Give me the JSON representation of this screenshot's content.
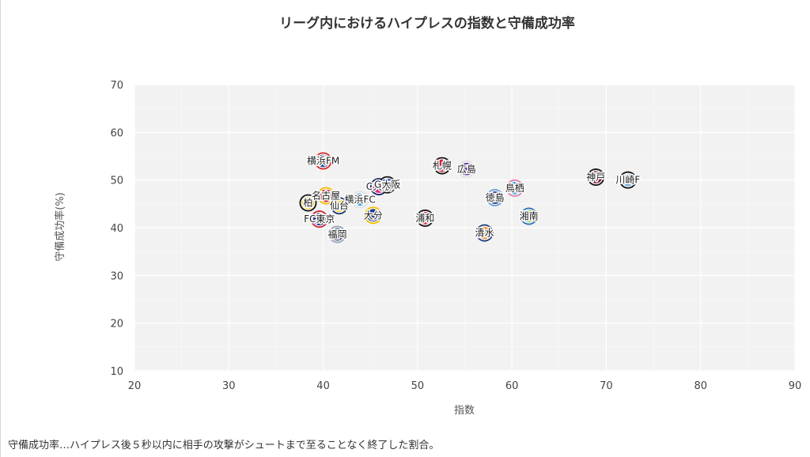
{
  "chart_data": {
    "type": "scatter",
    "title": "リーグ内におけるハイプレスの指数と守備成功率",
    "xlabel": "指数",
    "ylabel": "守備成功率(%)",
    "xlim": [
      20,
      90
    ],
    "ylim": [
      10,
      70
    ],
    "xticks": [
      20,
      30,
      40,
      50,
      60,
      70,
      80,
      90
    ],
    "yticks": [
      10,
      20,
      30,
      40,
      50,
      60,
      70
    ],
    "grid": true,
    "legend": "none",
    "points": [
      {
        "label": "横浜FM",
        "x": 40.0,
        "y": 54.0,
        "color": "#1f4b9c",
        "ring": "#d82b2b"
      },
      {
        "label": "札幌",
        "x": 52.6,
        "y": 53.0,
        "color": "#d4263b",
        "ring": "#1a1a1a"
      },
      {
        "label": "広島",
        "x": 55.2,
        "y": 52.3,
        "color": "#6a3fa8",
        "ring": "#e0e0e0"
      },
      {
        "label": "神戸",
        "x": 68.9,
        "y": 50.6,
        "color": "#8b1e3a",
        "ring": "#1a1a1a"
      },
      {
        "label": "川崎F",
        "x": 72.3,
        "y": 50.0,
        "color": "#7fb4e6",
        "ring": "#1a1a1a"
      },
      {
        "label": "C大阪",
        "x": 45.9,
        "y": 48.6,
        "color": "#e0307f",
        "ring": "#1d2b6b"
      },
      {
        "label": "G大阪",
        "x": 46.8,
        "y": 49.0,
        "color": "#1a5ab8",
        "ring": "#1a1a1a"
      },
      {
        "label": "鳥栖",
        "x": 60.3,
        "y": 48.3,
        "color": "#2aa0d8",
        "ring": "#e080b0"
      },
      {
        "label": "名古屋",
        "x": 40.3,
        "y": 46.7,
        "color": "#cf1e2e",
        "ring": "#f0c000"
      },
      {
        "label": "徳島",
        "x": 58.2,
        "y": 46.3,
        "color": "#1c2f6e",
        "ring": "#6aa0d8"
      },
      {
        "label": "横浜FC",
        "x": 43.9,
        "y": 45.9,
        "color": "#35a8d9",
        "ring": "#e0e0e0"
      },
      {
        "label": "柏",
        "x": 38.4,
        "y": 45.2,
        "color": "#f3d43a",
        "ring": "#1a1a1a"
      },
      {
        "label": "仙台",
        "x": 41.7,
        "y": 44.6,
        "color": "#f2cc2e",
        "ring": "#1c3a7a"
      },
      {
        "label": "大分",
        "x": 45.3,
        "y": 42.6,
        "color": "#213a86",
        "ring": "#f0c000"
      },
      {
        "label": "湘南",
        "x": 61.8,
        "y": 42.4,
        "color": "#8ccf3e",
        "ring": "#2a6fc0"
      },
      {
        "label": "浦和",
        "x": 50.8,
        "y": 42.0,
        "color": "#d62f3c",
        "ring": "#1a1a1a"
      },
      {
        "label": "FC東京",
        "x": 39.6,
        "y": 41.8,
        "color": "#1c2e8a",
        "ring": "#cf1e2e"
      },
      {
        "label": "清水",
        "x": 57.1,
        "y": 38.9,
        "color": "#f39a3c",
        "ring": "#1c3a7a"
      },
      {
        "label": "福岡",
        "x": 41.5,
        "y": 38.6,
        "color": "#1f2f5e",
        "ring": "#9aa6b8"
      }
    ]
  },
  "footnote": "守備成功率…ハイプレス後５秒以内に相手の攻撃がシュートまで至ることなく終了した割合。"
}
